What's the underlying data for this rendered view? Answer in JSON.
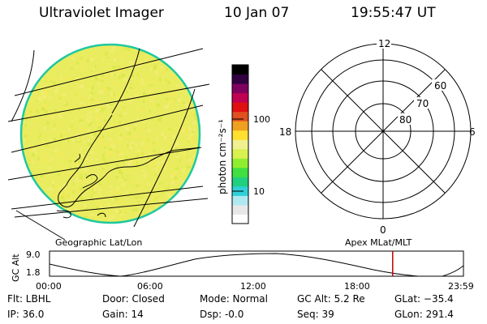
{
  "header": {
    "instrument": "Ultraviolet Imager",
    "date": "10 Jan 07",
    "time": "19:55:47 UT"
  },
  "colorbar": {
    "unit_label": "photon cm⁻²s⁻¹",
    "tick_labels": [
      "100",
      "10"
    ],
    "colors": [
      "#ffffff",
      "#e8e8e8",
      "#b0e8f0",
      "#30d0d8",
      "#20d080",
      "#40e040",
      "#90ee30",
      "#d8f050",
      "#f0f090",
      "#ffe030",
      "#f0a020",
      "#e05020",
      "#e01010",
      "#c00050",
      "#800060",
      "#300040",
      "#000000"
    ]
  },
  "polar_plot": {
    "clock_labels": [
      "12",
      "18",
      "6",
      "0"
    ],
    "lat_labels": [
      "60",
      "70",
      "80"
    ]
  },
  "map": {
    "left_label": "Geographic Lat/Lon",
    "right_label": "Apex MLat/MLT",
    "disk_colors": [
      "#f2ee78",
      "#e6ec5c",
      "#d8e84a",
      "#f4e85a"
    ],
    "coast_color": "#000000"
  },
  "altitude_strip": {
    "axis_label": "GC Alt",
    "y_ticks": [
      "9.0",
      "1.8"
    ],
    "x_ticks": [
      "00:00",
      "06:00",
      "12:00",
      "18:00",
      "23:59"
    ],
    "current_time_fraction": 0.829,
    "marker_color": "#c00000"
  },
  "status": {
    "flt": "Flt: LBHL",
    "ip": "IP: 36.0",
    "door": "Door: Closed",
    "gain": "Gain: 14",
    "mode": "Mode: Normal",
    "dsp": "Dsp:    -0.0",
    "gc_alt": "GC Alt: 5.2 Re",
    "seq": "Seq: 39",
    "glat": "GLat: −35.4",
    "glon": "GLon: 291.4"
  }
}
